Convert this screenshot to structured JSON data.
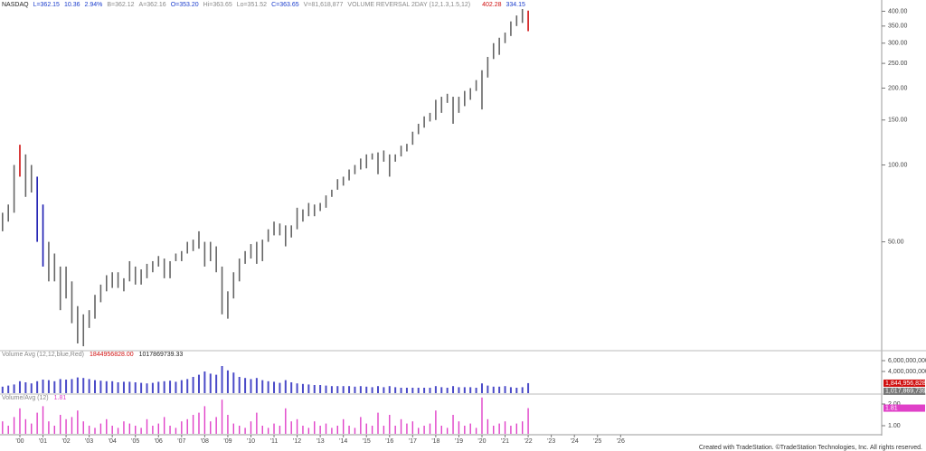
{
  "chart_data": {
    "type": "ohlc",
    "log_scale": true,
    "header": [
      {
        "text": "NASDAQ",
        "color": "#222"
      },
      {
        "text": "L=362.15",
        "color": "#1a3ccc"
      },
      {
        "text": "10.36",
        "color": "#1a3ccc"
      },
      {
        "text": "2.94%",
        "color": "#1a3ccc"
      },
      {
        "text": "B=362.12",
        "color": "#888"
      },
      {
        "text": "A=362.16",
        "color": "#888"
      },
      {
        "text": "O=353.20",
        "color": "#1a3ccc"
      },
      {
        "text": "Hi=363.65",
        "color": "#888"
      },
      {
        "text": "Lo=351.52",
        "color": "#888"
      },
      {
        "text": "C=363.65",
        "color": "#1a3ccc"
      },
      {
        "text": "V=81,618,877",
        "color": "#888"
      },
      {
        "text": "VOLUME REVERSAL 2DAY (12,1.3,1.5,12)",
        "color": "#888"
      }
    ],
    "high_color": "#d01010",
    "low_color": "#1a3ccc",
    "x": [
      1999.25,
      1999.5,
      1999.75,
      2000,
      2000.25,
      2000.5,
      2000.75,
      2001,
      2001.25,
      2001.5,
      2001.75,
      2002,
      2002.25,
      2002.5,
      2002.75,
      2003,
      2003.25,
      2003.5,
      2003.75,
      2004,
      2004.25,
      2004.5,
      2004.75,
      2005,
      2005.25,
      2005.5,
      2005.75,
      2006,
      2006.25,
      2006.5,
      2006.75,
      2007,
      2007.25,
      2007.5,
      2007.75,
      2008,
      2008.25,
      2008.5,
      2008.75,
      2009,
      2009.25,
      2009.5,
      2009.75,
      2010,
      2010.25,
      2010.5,
      2010.75,
      2011,
      2011.25,
      2011.5,
      2011.75,
      2012,
      2012.25,
      2012.5,
      2012.75,
      2013,
      2013.25,
      2013.5,
      2013.75,
      2014,
      2014.25,
      2014.5,
      2014.75,
      2015,
      2015.25,
      2015.5,
      2015.75,
      2016,
      2016.25,
      2016.5,
      2016.75,
      2017,
      2017.25,
      2017.5,
      2017.75,
      2018,
      2018.25,
      2018.5,
      2018.75,
      2019,
      2019.25,
      2019.5,
      2019.75,
      2020,
      2020.25,
      2020.5,
      2020.75,
      2021,
      2021.25,
      2021.5,
      2021.75,
      2022
    ],
    "high": [
      65,
      70,
      100,
      120,
      110,
      100,
      90,
      70,
      50,
      45,
      40,
      40,
      35,
      28,
      26,
      27,
      31,
      34,
      37,
      38,
      38,
      36,
      42,
      40,
      39,
      41,
      42,
      44,
      43,
      42,
      45,
      46,
      50,
      51,
      55,
      50,
      50,
      48,
      40,
      32,
      38,
      43,
      46,
      49,
      50,
      51,
      56,
      60,
      59,
      58,
      58,
      68,
      67,
      71,
      70,
      71,
      76,
      80,
      88,
      90,
      96,
      100,
      106,
      110,
      111,
      112,
      114,
      110,
      110,
      119,
      121,
      135,
      145,
      155,
      160,
      180,
      185,
      190,
      185,
      185,
      195,
      200,
      215,
      235,
      265,
      300,
      315,
      330,
      365,
      385,
      408,
      402.28
    ],
    "low": [
      55,
      60,
      65,
      90,
      75,
      78,
      50,
      40,
      35,
      35,
      27,
      30,
      24,
      20,
      19.5,
      23,
      25,
      29,
      32,
      33,
      33,
      32,
      35,
      34,
      34,
      36,
      38,
      40,
      36,
      36,
      42,
      42,
      45,
      46,
      47,
      40,
      42,
      38,
      26,
      25,
      30,
      35,
      41,
      43,
      41,
      42,
      50,
      53,
      53,
      48,
      52,
      56,
      60,
      63,
      63,
      66,
      68,
      75,
      80,
      83,
      87,
      92,
      96,
      97,
      105,
      92,
      103,
      90,
      103,
      108,
      113,
      120,
      132,
      140,
      148,
      150,
      160,
      175,
      145,
      160,
      170,
      180,
      195,
      165,
      220,
      260,
      270,
      300,
      320,
      350,
      360,
      334.15
    ],
    "colors": [
      "#666",
      "#666",
      "#666",
      "#d01010",
      "#666",
      "#666",
      "#1a1ab0",
      "#1a1ab0",
      "#666",
      "#666",
      "#666",
      "#666",
      "#666",
      "#666",
      "#666",
      "#666",
      "#666",
      "#666",
      "#666",
      "#666",
      "#666",
      "#666",
      "#666",
      "#666",
      "#666",
      "#666",
      "#666",
      "#666",
      "#666",
      "#666",
      "#666",
      "#666",
      "#666",
      "#666",
      "#666",
      "#666",
      "#666",
      "#666",
      "#666",
      "#666",
      "#666",
      "#666",
      "#666",
      "#666",
      "#666",
      "#666",
      "#666",
      "#666",
      "#666",
      "#666",
      "#666",
      "#666",
      "#666",
      "#666",
      "#666",
      "#666",
      "#666",
      "#666",
      "#666",
      "#666",
      "#666",
      "#666",
      "#666",
      "#666",
      "#666",
      "#666",
      "#666",
      "#666",
      "#666",
      "#666",
      "#666",
      "#666",
      "#666",
      "#666",
      "#666",
      "#666",
      "#666",
      "#666",
      "#666",
      "#666",
      "#666",
      "#666",
      "#666",
      "#666",
      "#666",
      "#666",
      "#666",
      "#666",
      "#666",
      "#666",
      "#666",
      "#d01010"
    ],
    "xlim": [
      1999.14,
      2037.3
    ],
    "xticks": [
      {
        "value": 2000,
        "label": "'00"
      },
      {
        "value": 2001,
        "label": "'01"
      },
      {
        "value": 2002,
        "label": "'02"
      },
      {
        "value": 2003,
        "label": "'03"
      },
      {
        "value": 2004,
        "label": "'04"
      },
      {
        "value": 2005,
        "label": "'05"
      },
      {
        "value": 2006,
        "label": "'06"
      },
      {
        "value": 2007,
        "label": "'07"
      },
      {
        "value": 2008,
        "label": "'08"
      },
      {
        "value": 2009,
        "label": "'09"
      },
      {
        "value": 2010,
        "label": "'10"
      },
      {
        "value": 2011,
        "label": "'11"
      },
      {
        "value": 2012,
        "label": "'12"
      },
      {
        "value": 2013,
        "label": "'13"
      },
      {
        "value": 2014,
        "label": "'14"
      },
      {
        "value": 2015,
        "label": "'15"
      },
      {
        "value": 2016,
        "label": "'16"
      },
      {
        "value": 2017,
        "label": "'17"
      },
      {
        "value": 2018,
        "label": "'18"
      },
      {
        "value": 2019,
        "label": "'19"
      },
      {
        "value": 2020,
        "label": "'20"
      },
      {
        "value": 2021,
        "label": "'21"
      },
      {
        "value": 2022,
        "label": "'22"
      },
      {
        "value": 2023,
        "label": "'23"
      },
      {
        "value": 2024,
        "label": "'24"
      },
      {
        "value": 2025,
        "label": "'25"
      },
      {
        "value": 2026,
        "label": "'26"
      }
    ],
    "ylim": [
      19.2,
      432
    ],
    "yticks": [
      {
        "value": 50,
        "label": "50.00"
      },
      {
        "value": 100,
        "label": "100.00"
      },
      {
        "value": 150,
        "label": "150.00"
      },
      {
        "value": 200,
        "label": "200.00"
      },
      {
        "value": 250,
        "label": "250.00"
      },
      {
        "value": 300,
        "label": "300.00"
      },
      {
        "value": 350,
        "label": "350.00"
      },
      {
        "value": 400,
        "label": "400.00"
      }
    ],
    "volume_title": "Volume Avg (12,12,blue,Red)",
    "volume_last_labels": [
      "1844956828.00",
      "1,844,956,828"
    ],
    "volume_avg": {
      "value": 1017869739.33,
      "label": "1,017,869,739"
    },
    "volume_color": "#4a4ac8",
    "volume": [
      1200000000.0,
      1400000000.0,
      1600000000.0,
      2200000000.0,
      2000000000.0,
      1800000000.0,
      2200000000.0,
      2500000000.0,
      2400000000.0,
      2200000000.0,
      2600000000.0,
      2500000000.0,
      2600000000.0,
      2900000000.0,
      2800000000.0,
      2600000000.0,
      2400000000.0,
      2300000000.0,
      2200000000.0,
      2200000000.0,
      2000000000.0,
      2100000000.0,
      2100000000.0,
      2000000000.0,
      1900000000.0,
      1800000000.0,
      1900000000.0,
      2100000000.0,
      2200000000.0,
      2300000000.0,
      2100000000.0,
      2400000000.0,
      2600000000.0,
      3000000000.0,
      3400000000.0,
      4000000000.0,
      3600000000.0,
      3400000000.0,
      5000000000.0,
      4200000000.0,
      3800000000.0,
      3000000000.0,
      2800000000.0,
      2600000000.0,
      2800000000.0,
      2400000000.0,
      2200000000.0,
      2100000000.0,
      1900000000.0,
      2400000000.0,
      2000000000.0,
      1800000000.0,
      1700000000.0,
      1600000000.0,
      1500000000.0,
      1500000000.0,
      1400000000.0,
      1300000000.0,
      1300000000.0,
      1300000000.0,
      1300000000.0,
      1200000000.0,
      1300000000.0,
      1200000000.0,
      1100000000.0,
      1300000000.0,
      1100000000.0,
      1300000000.0,
      1100000000.0,
      1000000000.0,
      1000000000.0,
      1000000000.0,
      1000000000.0,
      1000000000.0,
      1000000000.0,
      1300000000.0,
      1100000000.0,
      1000000000.0,
      1300000000.0,
      1100000000.0,
      1100000000.0,
      1100000000.0,
      1000000000.0,
      1800000000.0,
      1400000000.0,
      1200000000.0,
      1200000000.0,
      1300000000.0,
      1100000000.0,
      1000000000.0,
      1100000000.0,
      1844956828
    ],
    "volume_ylim": [
      0,
      7170000000.0
    ],
    "volume_yticks": [
      {
        "value": 6000000000.0,
        "label": "6,000,000,000"
      },
      {
        "value": 4000000000.0,
        "label": "4,000,000,000"
      }
    ],
    "ratio_title": "Volume/Avg (12)",
    "ratio_color": "#e040c8",
    "ratio": [
      1.2,
      1.0,
      1.4,
      1.8,
      1.3,
      1.1,
      1.6,
      1.9,
      1.2,
      1.0,
      1.5,
      1.3,
      1.4,
      1.7,
      1.2,
      1.0,
      0.9,
      1.1,
      1.3,
      1.0,
      0.9,
      1.2,
      1.1,
      1.0,
      0.9,
      1.3,
      1.0,
      1.1,
      1.4,
      1.0,
      0.9,
      1.2,
      1.3,
      1.5,
      1.6,
      1.9,
      1.2,
      1.4,
      2.2,
      1.5,
      1.1,
      1.0,
      0.9,
      1.2,
      1.6,
      1.0,
      0.9,
      1.1,
      1.0,
      1.8,
      1.2,
      1.3,
      1.0,
      0.9,
      1.2,
      1.0,
      1.1,
      0.9,
      1.0,
      1.3,
      1.0,
      0.9,
      1.4,
      1.1,
      1.0,
      1.6,
      1.0,
      1.5,
      1.0,
      1.3,
      1.1,
      1.2,
      0.9,
      1.0,
      1.1,
      1.7,
      1.0,
      0.9,
      1.5,
      1.2,
      1.0,
      1.1,
      0.9,
      2.3,
      1.3,
      1.0,
      1.1,
      1.2,
      1.0,
      1.1,
      1.2,
      1.81
    ],
    "ratio_ylim": [
      0.625,
      2.375
    ],
    "ratio_yticks": [
      {
        "value": 2,
        "label": "2.00"
      },
      {
        "value": 1,
        "label": "1.00"
      }
    ],
    "footer": "Created with TradeStation. ©TradeStation Technologies, Inc. All rights reserved."
  }
}
